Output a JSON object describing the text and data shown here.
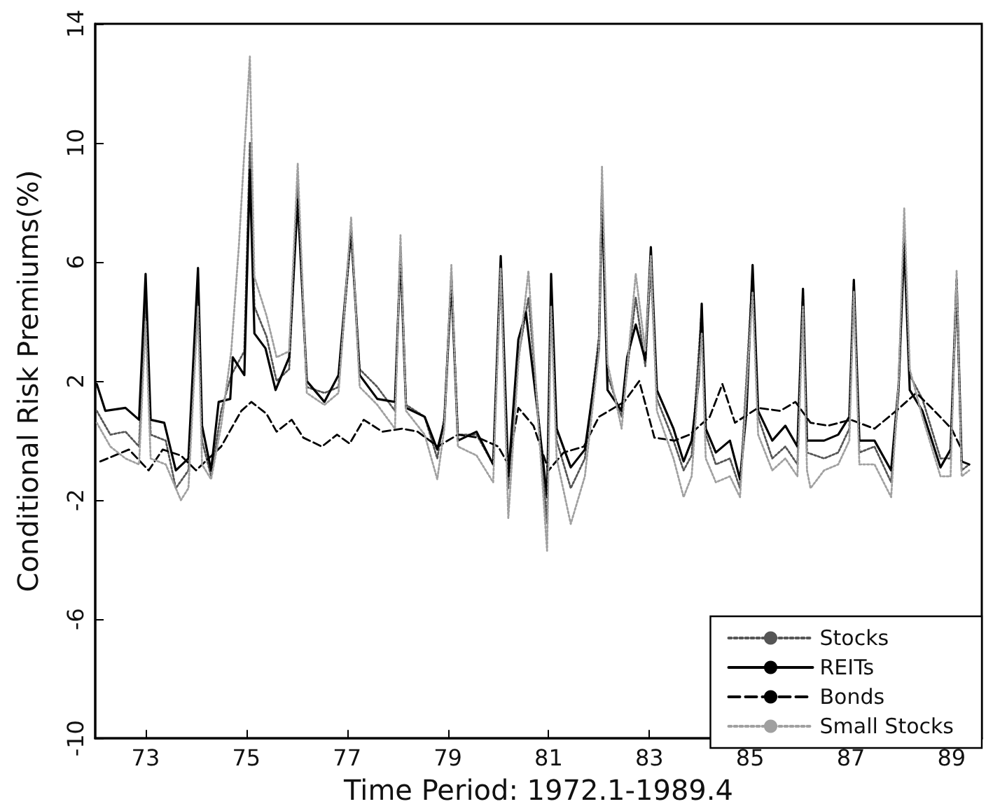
{
  "chart_data": {
    "type": "line",
    "xlabel": "Time Period: 1972.1-1989.4",
    "ylabel": "Conditional Risk Premiums(%)",
    "xlim": [
      72,
      89.6
    ],
    "xticks": [
      73,
      75,
      77,
      79,
      81,
      83,
      85,
      87,
      89
    ],
    "ylim": [
      -10,
      14
    ],
    "yticks": [
      -10,
      -6,
      -2,
      2,
      6,
      10,
      14
    ],
    "grid": false,
    "legend": "bottom right",
    "marker": "none",
    "series": [
      {
        "name": "Stocks",
        "color": "#555555",
        "line_style": "dotted",
        "x": [
          72.03,
          72.3,
          72.6,
          72.87,
          73.0,
          73.1,
          73.4,
          73.6,
          73.85,
          74.04,
          74.12,
          74.3,
          74.5,
          74.7,
          74.96,
          75.07,
          75.16,
          75.4,
          75.6,
          75.85,
          76.02,
          76.2,
          76.55,
          76.83,
          77.08,
          77.25,
          77.6,
          77.95,
          78.06,
          78.17,
          78.54,
          78.79,
          78.93,
          79.07,
          79.2,
          79.57,
          79.9,
          80.05,
          80.2,
          80.4,
          80.6,
          80.78,
          80.97,
          81.05,
          81.16,
          81.44,
          81.72,
          82.0,
          82.06,
          82.17,
          82.45,
          82.73,
          82.92,
          83.03,
          83.15,
          83.48,
          83.68,
          83.84,
          84.04,
          84.12,
          84.32,
          84.6,
          84.8,
          85.05,
          85.16,
          85.44,
          85.7,
          85.94,
          86.05,
          86.13,
          86.47,
          86.75,
          86.97,
          87.06,
          87.17,
          87.47,
          87.8,
          87.95,
          88.06,
          88.17,
          88.42,
          88.78,
          88.98,
          89.1,
          89.2,
          89.35
        ],
        "values": [
          1.0,
          0.2,
          0.3,
          -0.2,
          5.0,
          0.2,
          0,
          -1.6,
          -1.0,
          5.5,
          0,
          -1.2,
          1.0,
          2.2,
          3.0,
          10.0,
          4.5,
          3.5,
          2.0,
          2.4,
          8.6,
          1.8,
          1.6,
          1.8,
          7.0,
          2.4,
          1.8,
          1.0,
          6.5,
          1.2,
          0.8,
          -0.6,
          0.8,
          5.6,
          0.2,
          0.2,
          -0.8,
          5.6,
          -1.6,
          2.8,
          4.8,
          1.2,
          -2.8,
          5.2,
          0,
          -1.6,
          -0.6,
          3.5,
          8.6,
          2.2,
          0.8,
          4.8,
          2.5,
          5.8,
          1.4,
          0,
          -1.0,
          -0.5,
          4.4,
          0.2,
          -0.8,
          -0.6,
          -1.6,
          5.6,
          0.8,
          -0.6,
          -0.2,
          -0.8,
          5.0,
          -0.4,
          -0.6,
          -0.4,
          0.4,
          5.3,
          -0.4,
          -0.2,
          -1.4,
          1.6,
          7.0,
          2.2,
          1.4,
          -0.6,
          -0.6,
          5.2,
          -1.0,
          -0.8
        ]
      },
      {
        "name": "REITs",
        "color": "#000000",
        "line_style": "solid",
        "x": [
          72.03,
          72.2,
          72.6,
          72.87,
          73.0,
          73.1,
          73.37,
          73.6,
          73.85,
          74.04,
          74.12,
          74.3,
          74.45,
          74.68,
          74.73,
          74.96,
          75.07,
          75.16,
          75.38,
          75.58,
          75.85,
          76.02,
          76.2,
          76.55,
          76.83,
          77.08,
          77.25,
          77.6,
          77.95,
          78.06,
          78.17,
          78.54,
          78.79,
          78.93,
          79.07,
          79.2,
          79.57,
          79.9,
          80.05,
          80.2,
          80.4,
          80.55,
          80.78,
          80.97,
          81.05,
          81.16,
          81.44,
          81.72,
          82.0,
          82.06,
          82.17,
          82.45,
          82.56,
          82.73,
          82.92,
          83.03,
          83.15,
          83.48,
          83.68,
          83.84,
          83.98,
          84.04,
          84.12,
          84.32,
          84.6,
          84.8,
          84.93,
          85.05,
          85.16,
          85.44,
          85.7,
          85.94,
          86.05,
          86.13,
          86.47,
          86.75,
          86.97,
          87.06,
          87.17,
          87.47,
          87.8,
          87.95,
          88.06,
          88.17,
          88.42,
          88.78,
          88.98,
          89.1,
          89.2,
          89.35
        ],
        "values": [
          1.9,
          1.0,
          1.1,
          0.7,
          5.6,
          0.7,
          0.6,
          -1.0,
          -0.6,
          5.8,
          0.5,
          -1.0,
          1.3,
          1.4,
          2.8,
          2.2,
          9.1,
          3.6,
          3.1,
          1.7,
          2.8,
          8.1,
          2.0,
          1.3,
          2.2,
          7.1,
          2.2,
          1.4,
          1.3,
          6.3,
          1.1,
          0.8,
          -0.3,
          0.6,
          5.4,
          0.0,
          0.3,
          -0.8,
          6.2,
          -1.2,
          3.4,
          4.3,
          1.0,
          -1.9,
          5.6,
          0.4,
          -0.9,
          -0.3,
          3.1,
          8.3,
          1.7,
          1.0,
          2.8,
          3.9,
          2.7,
          6.5,
          1.7,
          0.4,
          -0.7,
          0.0,
          2.0,
          4.6,
          0.4,
          -0.4,
          0.0,
          -1.3,
          1.0,
          5.9,
          1.0,
          0.0,
          0.5,
          -0.2,
          5.1,
          0.0,
          0.0,
          0.2,
          0.8,
          5.4,
          0.0,
          0.0,
          -1.0,
          1.9,
          6.6,
          1.7,
          1.0,
          -0.9,
          -0.3,
          5.4,
          -0.7,
          -0.8
        ]
      },
      {
        "name": "Bonds",
        "color": "#000000",
        "line_style": "dashed",
        "x": [
          72.1,
          72.67,
          73.06,
          73.34,
          73.7,
          74.0,
          74.5,
          74.9,
          75.1,
          75.4,
          75.6,
          75.9,
          76.13,
          76.5,
          76.8,
          77.05,
          77.33,
          77.7,
          78.1,
          78.4,
          78.8,
          79.2,
          79.6,
          80.0,
          80.2,
          80.4,
          80.7,
          81.0,
          81.3,
          81.7,
          82.0,
          82.5,
          82.8,
          83.1,
          83.5,
          83.8,
          84.2,
          84.45,
          84.7,
          85.16,
          85.6,
          85.9,
          86.2,
          86.55,
          87.0,
          87.47,
          87.9,
          88.3,
          88.6,
          89.0,
          89.2
        ],
        "values": [
          -0.7,
          -0.3,
          -1.0,
          -0.3,
          -0.5,
          -1.0,
          -0.2,
          1.0,
          1.3,
          0.9,
          0.3,
          0.7,
          0.1,
          -0.2,
          0.2,
          -0.1,
          0.7,
          0.3,
          0.4,
          0.3,
          -0.2,
          0.2,
          0.1,
          -0.2,
          -0.8,
          1.1,
          0.5,
          -1.0,
          -0.4,
          -0.2,
          0.8,
          1.3,
          2.0,
          0.1,
          0,
          0.2,
          0.8,
          1.9,
          0.6,
          1.1,
          1.0,
          1.3,
          0.6,
          0.5,
          0.7,
          0.4,
          1.0,
          1.6,
          1.1,
          0.4,
          -0.3
        ]
      },
      {
        "name": "Small Stocks",
        "color": "#a0a0a0",
        "line_style": "dotted",
        "x": [
          72.03,
          72.3,
          72.6,
          72.87,
          73.0,
          73.1,
          73.4,
          73.7,
          73.85,
          74.04,
          74.12,
          74.3,
          74.5,
          74.7,
          74.85,
          75.07,
          75.16,
          75.4,
          75.6,
          75.85,
          76.02,
          76.2,
          76.55,
          76.83,
          77.08,
          77.25,
          77.6,
          77.95,
          78.06,
          78.17,
          78.54,
          78.79,
          78.93,
          79.07,
          79.2,
          79.57,
          79.9,
          80.05,
          80.2,
          80.4,
          80.6,
          80.78,
          80.97,
          81.05,
          81.16,
          81.44,
          81.72,
          82.0,
          82.06,
          82.17,
          82.45,
          82.73,
          82.92,
          83.03,
          83.15,
          83.48,
          83.68,
          83.84,
          84.04,
          84.12,
          84.32,
          84.6,
          84.8,
          85.05,
          85.16,
          85.44,
          85.7,
          85.94,
          86.05,
          86.13,
          86.2,
          86.47,
          86.75,
          86.97,
          87.06,
          87.17,
          87.47,
          87.8,
          87.95,
          88.06,
          88.17,
          88.42,
          88.78,
          88.98,
          89.1,
          89.2,
          89.35
        ],
        "values": [
          0.6,
          -0.2,
          -0.6,
          -0.8,
          4.0,
          -0.6,
          -0.8,
          -2.0,
          -1.6,
          4.5,
          -0.8,
          -1.3,
          0.5,
          3.0,
          6.5,
          12.9,
          5.5,
          4.2,
          2.8,
          3.0,
          9.3,
          1.6,
          1.2,
          1.6,
          7.5,
          1.8,
          1.2,
          0.4,
          6.9,
          1.0,
          0.2,
          -1.3,
          0.4,
          5.9,
          -0.2,
          -0.5,
          -1.4,
          5.8,
          -2.6,
          2.6,
          5.7,
          1.0,
          -3.7,
          4.5,
          -0.6,
          -2.8,
          -1.2,
          3.0,
          9.2,
          2.6,
          0.4,
          5.6,
          3.0,
          6.2,
          1.0,
          -0.6,
          -1.9,
          -1.2,
          3.6,
          -0.6,
          -1.4,
          -1.2,
          -1.9,
          5.0,
          0.2,
          -1.0,
          -0.6,
          -1.2,
          4.5,
          -1.0,
          -1.6,
          -1.0,
          -0.8,
          0,
          5.0,
          -0.8,
          -0.8,
          -1.9,
          2.0,
          7.8,
          2.4,
          0.8,
          -1.2,
          -1.2,
          5.7,
          -1.2,
          -1.0
        ]
      }
    ]
  }
}
